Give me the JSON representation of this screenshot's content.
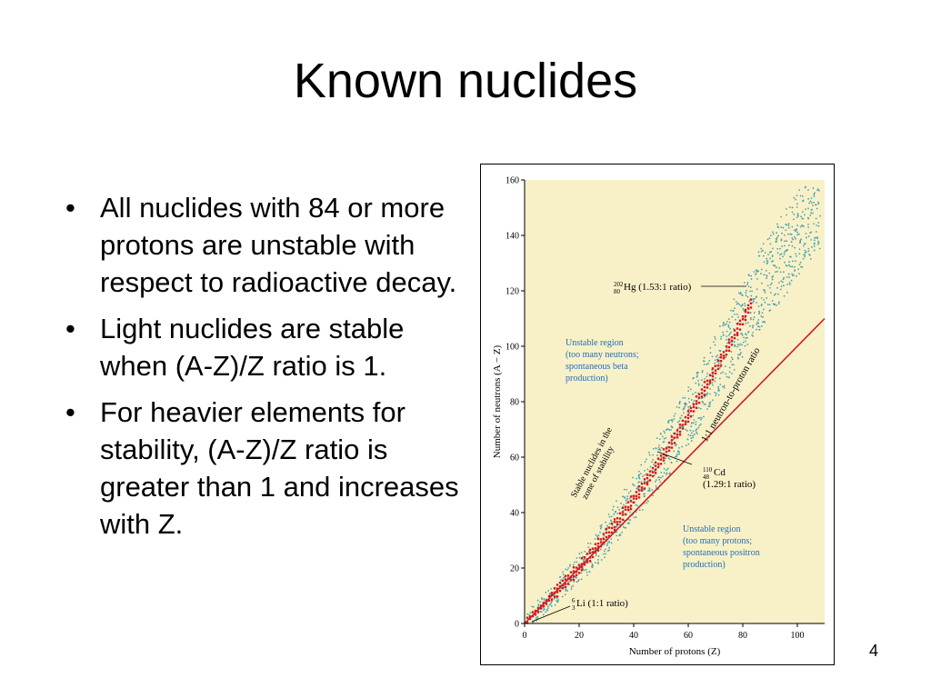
{
  "slide": {
    "title": "Known nuclides",
    "bullets": [
      "All nuclides with 84 or more protons are unstable with respect to radioactive decay.",
      "Light nuclides are stable when (A-Z)/Z ratio is 1.",
      "For heavier elements for stability, (A-Z)/Z ratio is greater than 1 and increases with Z."
    ],
    "page_number": "4"
  },
  "colors": {
    "plot_background": "#f8f1c8",
    "stable_points": "#d11a22",
    "unstable_points": "#4aa0b0",
    "ratio_line": "#d11a22",
    "annotation_text": "#1f6fb5"
  },
  "chart_data": {
    "type": "scatter",
    "xlabel": "Number of protons (Z)",
    "ylabel": "Number of neutrons (A − Z)",
    "xlim": [
      0,
      110
    ],
    "ylim": [
      0,
      160
    ],
    "x_ticks": [
      "0",
      "20",
      "40",
      "60",
      "80",
      "100"
    ],
    "y_ticks": [
      "0",
      "20",
      "40",
      "60",
      "80",
      "100",
      "120",
      "140",
      "160"
    ],
    "x_tick_values": [
      0,
      20,
      40,
      60,
      80,
      100
    ],
    "y_tick_values": [
      0,
      20,
      40,
      60,
      80,
      100,
      120,
      140,
      160
    ],
    "reference_line": {
      "label": "1:1 neutron-to-proton ratio",
      "points": [
        [
          0,
          0
        ],
        [
          110,
          110
        ]
      ]
    },
    "band_label": "Stable nuclides in the zone of stability",
    "points": [
      {
        "element_symbol": "Hg",
        "mass_number": "202",
        "atomic_number": "80",
        "note": "(1.53:1 ratio)",
        "z": 80,
        "n": 122
      },
      {
        "element_symbol": "Cd",
        "mass_number": "110",
        "atomic_number": "48",
        "note": "(1.29:1 ratio)",
        "z": 48,
        "n": 62
      },
      {
        "element_symbol": "Li",
        "mass_number": "6",
        "atomic_number": "3",
        "note": "(1:1 ratio)",
        "z": 3,
        "n": 3
      }
    ],
    "regions": [
      {
        "lines": [
          "Unstable region",
          "(too many neutrons;",
          "spontaneous beta",
          "production)"
        ]
      },
      {
        "lines": [
          "Unstable region",
          "(too many protons;",
          "spontaneous positron",
          "production)"
        ]
      }
    ]
  }
}
